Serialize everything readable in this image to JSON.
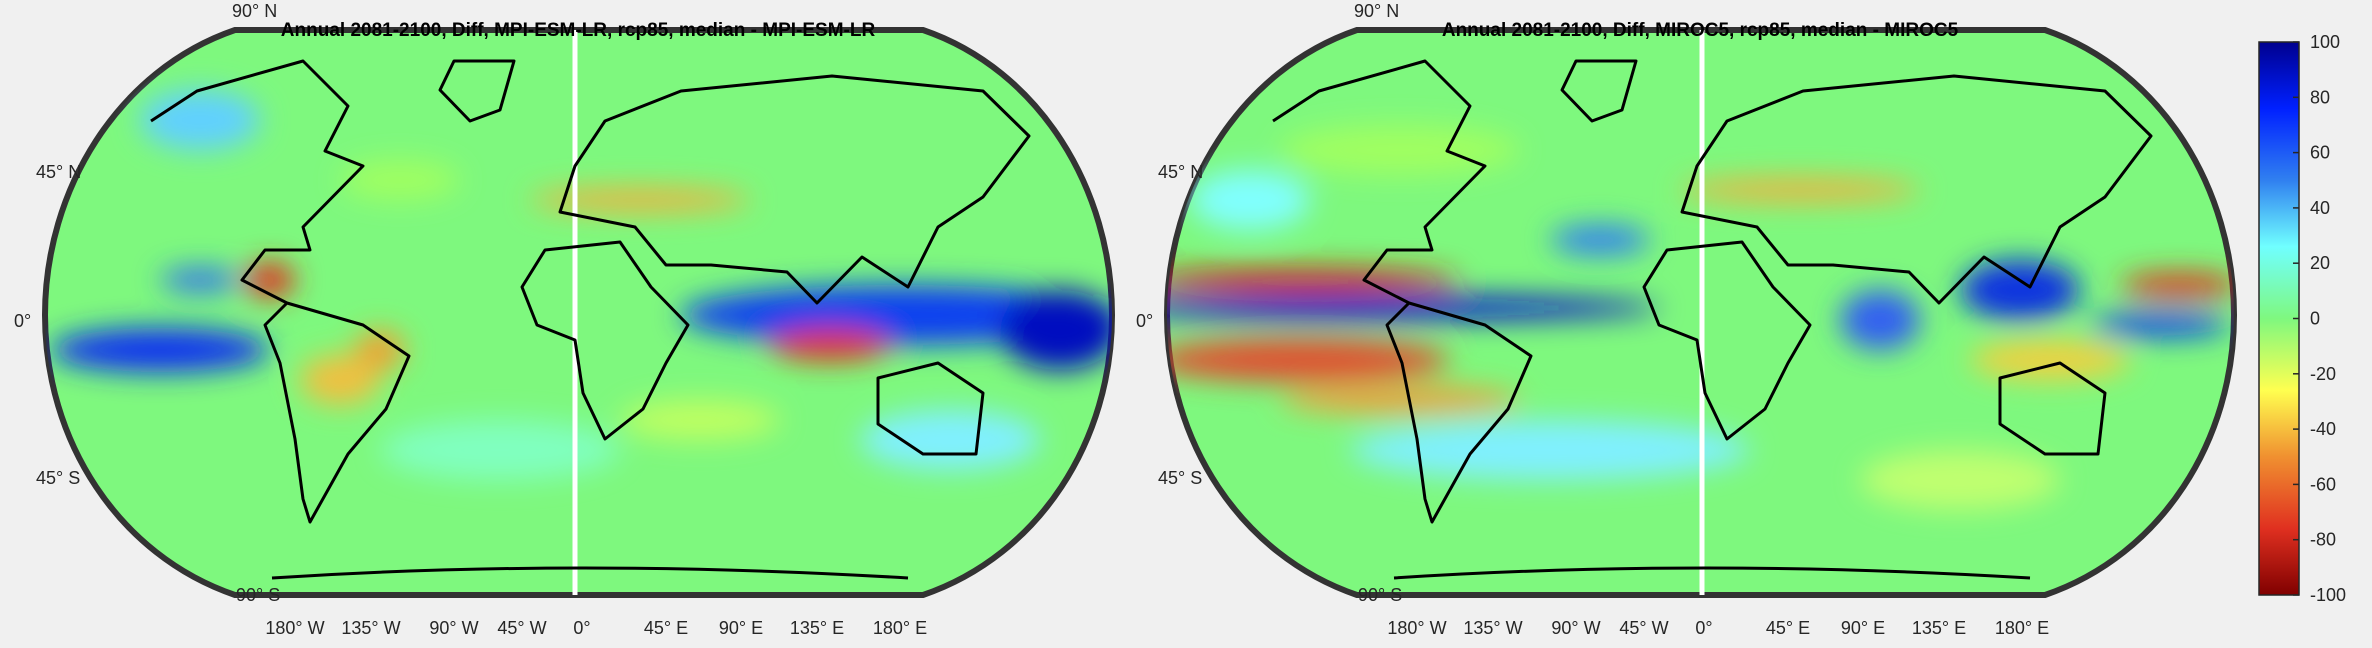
{
  "maps": [
    {
      "title": "Annual 2081-2100, Diff, MPI-ESM-LR, rcp85, median - MPI-ESM-LR",
      "lat_labels": [
        "90° N",
        "45° N",
        "0°",
        "45° S",
        "90° S"
      ],
      "lon_labels": [
        "180° W",
        "135° W",
        "90° W",
        "45° W",
        "0°",
        "45° E",
        "90° E",
        "135° E",
        "180° E"
      ]
    },
    {
      "title": "Annual 2081-2100, Diff, MIROC5, rcp85, median - MIROC5",
      "lat_labels": [
        "90° N",
        "45° N",
        "0°",
        "45° S",
        "90° S"
      ],
      "lon_labels": [
        "180° W",
        "135° W",
        "90° W",
        "45° W",
        "0°",
        "45° E",
        "90° E",
        "135° E",
        "180° E"
      ]
    }
  ],
  "colorbar": {
    "min": -100,
    "max": 100,
    "colormap": "jet",
    "ticks": [
      "100",
      "80",
      "60",
      "40",
      "20",
      "0",
      "-20",
      "-40",
      "-60",
      "-80",
      "-100"
    ]
  }
}
